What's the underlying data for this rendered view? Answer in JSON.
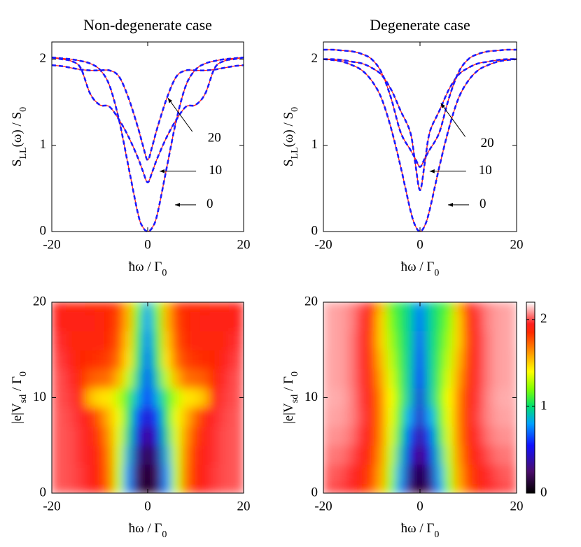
{
  "chart_data": [
    {
      "type": "line",
      "title": "Non-degenerate case",
      "xlabel": [
        {
          "text": "ħω / Γ"
        },
        {
          "text": "0",
          "sub": true
        }
      ],
      "ylabel": [
        {
          "text": "S"
        },
        {
          "text": "LL",
          "sub": true
        },
        {
          "text": "(ω) / S"
        },
        {
          "text": "0",
          "sub": true
        }
      ],
      "xlim": [
        -20,
        20
      ],
      "xticks": [
        -20,
        0,
        20
      ],
      "ylim": [
        0,
        2.2
      ],
      "yticks": [
        0,
        1,
        2
      ],
      "x": [
        -20,
        -18,
        -16,
        -14,
        -12,
        -10,
        -8,
        -6,
        -4,
        -2,
        -1,
        0,
        1,
        2,
        4,
        6,
        8,
        10,
        12,
        14,
        16,
        18,
        20
      ],
      "series": [
        {
          "color": "#ff2020",
          "dash_color": "#1a1aff",
          "values": [
            2.02,
            2.01,
            2.0,
            1.98,
            1.95,
            1.88,
            1.7,
            1.3,
            0.75,
            0.2,
            0.05,
            0,
            0.05,
            0.2,
            0.75,
            1.3,
            1.7,
            1.88,
            1.95,
            1.98,
            2.0,
            2.01,
            2.02
          ]
        },
        {
          "color": "#ff2020",
          "dash_color": "#1a1aff",
          "values": [
            2.02,
            2.0,
            1.98,
            1.9,
            1.6,
            1.47,
            1.45,
            1.3,
            1.1,
            0.85,
            0.7,
            0.57,
            0.7,
            0.85,
            1.1,
            1.3,
            1.45,
            1.47,
            1.6,
            1.9,
            1.98,
            2.0,
            2.02
          ]
        },
        {
          "color": "#ff2020",
          "dash_color": "#1a1aff",
          "values": [
            1.93,
            1.92,
            1.9,
            1.88,
            1.87,
            1.87,
            1.87,
            1.8,
            1.55,
            1.2,
            1.0,
            0.83,
            1.0,
            1.2,
            1.55,
            1.8,
            1.87,
            1.87,
            1.87,
            1.88,
            1.9,
            1.92,
            1.93
          ]
        }
      ],
      "annotations": [
        {
          "text": "20",
          "x": 4.2,
          "y": 1.55
        },
        {
          "text": "10",
          "x": 2.5,
          "y": 0.7
        },
        {
          "text": "0",
          "x": 5.7,
          "y": 0.31
        }
      ]
    },
    {
      "type": "line",
      "title": "Degenerate case",
      "xlabel": [
        {
          "text": "ħω / Γ"
        },
        {
          "text": "0",
          "sub": true
        }
      ],
      "ylabel": [
        {
          "text": "S"
        },
        {
          "text": "LL",
          "sub": true
        },
        {
          "text": "(ω) / S"
        },
        {
          "text": "0",
          "sub": true
        }
      ],
      "xlim": [
        -20,
        20
      ],
      "xticks": [
        -20,
        0,
        20
      ],
      "ylim": [
        0,
        2.2
      ],
      "yticks": [
        0,
        1,
        2
      ],
      "x": [
        -20,
        -18,
        -16,
        -14,
        -12,
        -10,
        -8,
        -6,
        -4,
        -2,
        -1,
        0,
        1,
        2,
        4,
        6,
        8,
        10,
        12,
        14,
        16,
        18,
        20
      ],
      "series": [
        {
          "color": "#ff2020",
          "dash_color": "#1a1aff",
          "values": [
            2.0,
            1.99,
            1.97,
            1.93,
            1.87,
            1.75,
            1.55,
            1.2,
            0.75,
            0.25,
            0.07,
            0,
            0.07,
            0.25,
            0.75,
            1.2,
            1.55,
            1.75,
            1.87,
            1.93,
            1.97,
            1.99,
            2.0
          ]
        },
        {
          "color": "#ff2020",
          "dash_color": "#1a1aff",
          "values": [
            2.0,
            2.0,
            1.99,
            1.97,
            1.95,
            1.9,
            1.82,
            1.65,
            1.4,
            1.15,
            0.8,
            0.48,
            0.8,
            1.15,
            1.4,
            1.65,
            1.82,
            1.9,
            1.95,
            1.97,
            1.99,
            2.0,
            2.0
          ]
        },
        {
          "color": "#ff2020",
          "dash_color": "#1a1aff",
          "values": [
            2.11,
            2.11,
            2.1,
            2.09,
            2.06,
            2.0,
            1.85,
            1.55,
            1.15,
            0.95,
            0.85,
            0.75,
            0.85,
            0.95,
            1.15,
            1.55,
            1.85,
            2.0,
            2.06,
            2.09,
            2.1,
            2.11,
            2.11
          ]
        }
      ],
      "annotations": [
        {
          "text": "20",
          "x": 4.3,
          "y": 1.49
        },
        {
          "text": "10",
          "x": 2,
          "y": 0.7
        },
        {
          "text": "0",
          "x": 5.8,
          "y": 0.31
        }
      ]
    },
    {
      "type": "heatmap",
      "xlabel": [
        {
          "text": "ħω / Γ"
        },
        {
          "text": "0",
          "sub": true
        }
      ],
      "ylabel": [
        {
          "text": "|e|V"
        },
        {
          "text": "sd",
          "sub": true
        },
        {
          "text": " / Γ"
        },
        {
          "text": "0",
          "sub": true
        }
      ],
      "xlim": [
        -20,
        20
      ],
      "xticks": [
        -20,
        0,
        20
      ],
      "ylim": [
        0,
        20
      ],
      "yticks": [
        0,
        10,
        20
      ],
      "colorscale": [
        [
          0,
          "#000000"
        ],
        [
          0.25,
          "#4b0c6b"
        ],
        [
          0.55,
          "#1010ff"
        ],
        [
          0.8,
          "#00a0ff"
        ],
        [
          1.0,
          "#00e070"
        ],
        [
          1.2,
          "#80ff00"
        ],
        [
          1.4,
          "#ffff00"
        ],
        [
          1.6,
          "#ffa000"
        ],
        [
          1.85,
          "#ff2a00"
        ],
        [
          1.95,
          "#ff2020"
        ],
        [
          2.2,
          "#ffffff"
        ]
      ],
      "x": [
        -20,
        -18,
        -16,
        -14,
        -12,
        -10,
        -8,
        -6,
        -4,
        -2,
        0,
        2,
        4,
        6,
        8,
        10,
        12,
        14,
        16,
        18,
        20
      ],
      "y": [
        0,
        2,
        4,
        6,
        8,
        10,
        12,
        14,
        16,
        18,
        20
      ],
      "z": [
        [
          2.02,
          2.01,
          2.0,
          1.98,
          1.95,
          1.88,
          1.7,
          1.3,
          0.75,
          0.2,
          0,
          0.2,
          0.75,
          1.3,
          1.7,
          1.88,
          1.95,
          1.98,
          2.0,
          2.01,
          2.02
        ],
        [
          2.02,
          2.01,
          2.0,
          1.98,
          1.94,
          1.86,
          1.68,
          1.3,
          0.78,
          0.25,
          0.05,
          0.25,
          0.78,
          1.3,
          1.68,
          1.86,
          1.94,
          1.98,
          2.0,
          2.01,
          2.02
        ],
        [
          2.02,
          2.01,
          2.0,
          1.97,
          1.93,
          1.84,
          1.66,
          1.32,
          0.85,
          0.35,
          0.15,
          0.35,
          0.85,
          1.32,
          1.66,
          1.84,
          1.93,
          1.97,
          2.0,
          2.01,
          2.02
        ],
        [
          2.02,
          2.01,
          2.0,
          1.97,
          1.92,
          1.8,
          1.62,
          1.35,
          0.95,
          0.5,
          0.3,
          0.5,
          0.95,
          1.35,
          1.62,
          1.8,
          1.92,
          1.97,
          2.0,
          2.01,
          2.02
        ],
        [
          2.02,
          2.01,
          1.99,
          1.96,
          1.9,
          1.72,
          1.55,
          1.38,
          1.05,
          0.65,
          0.45,
          0.65,
          1.05,
          1.38,
          1.55,
          1.72,
          1.9,
          1.96,
          1.99,
          2.01,
          2.02
        ],
        [
          2.02,
          2.0,
          1.98,
          1.9,
          1.55,
          1.47,
          1.45,
          1.3,
          1.1,
          0.85,
          0.57,
          0.85,
          1.1,
          1.3,
          1.45,
          1.47,
          1.55,
          1.9,
          1.98,
          2.0,
          2.02
        ],
        [
          2.01,
          2.0,
          1.96,
          1.85,
          1.75,
          1.72,
          1.7,
          1.55,
          1.3,
          0.95,
          0.63,
          0.95,
          1.3,
          1.55,
          1.7,
          1.72,
          1.75,
          1.85,
          1.96,
          2.0,
          2.01
        ],
        [
          2.0,
          1.98,
          1.93,
          1.87,
          1.85,
          1.83,
          1.8,
          1.7,
          1.45,
          1.05,
          0.68,
          1.05,
          1.45,
          1.7,
          1.8,
          1.83,
          1.85,
          1.87,
          1.93,
          1.98,
          2.0
        ],
        [
          1.98,
          1.96,
          1.9,
          1.9,
          1.9,
          1.88,
          1.85,
          1.75,
          1.5,
          1.1,
          0.73,
          1.1,
          1.5,
          1.75,
          1.85,
          1.88,
          1.9,
          1.9,
          1.9,
          1.96,
          1.98
        ],
        [
          1.96,
          1.92,
          1.92,
          1.92,
          1.92,
          1.9,
          1.87,
          1.78,
          1.55,
          1.15,
          0.78,
          1.15,
          1.55,
          1.78,
          1.87,
          1.9,
          1.92,
          1.92,
          1.92,
          1.92,
          1.96
        ],
        [
          1.93,
          1.92,
          1.9,
          1.88,
          1.87,
          1.87,
          1.87,
          1.8,
          1.55,
          1.2,
          0.83,
          1.2,
          1.55,
          1.8,
          1.87,
          1.87,
          1.87,
          1.88,
          1.9,
          1.92,
          1.93
        ]
      ]
    },
    {
      "type": "heatmap",
      "xlabel": [
        {
          "text": "ħω / Γ"
        },
        {
          "text": "0",
          "sub": true
        }
      ],
      "ylabel": [
        {
          "text": "|e|V"
        },
        {
          "text": "sd",
          "sub": true
        },
        {
          "text": " / Γ"
        },
        {
          "text": "0",
          "sub": true
        }
      ],
      "xlim": [
        -20,
        20
      ],
      "xticks": [
        -20,
        0,
        20
      ],
      "ylim": [
        0,
        20
      ],
      "yticks": [
        0,
        10,
        20
      ],
      "colorscale": [
        [
          0,
          "#000000"
        ],
        [
          0.25,
          "#4b0c6b"
        ],
        [
          0.55,
          "#1010ff"
        ],
        [
          0.8,
          "#00a0ff"
        ],
        [
          1.0,
          "#00e070"
        ],
        [
          1.2,
          "#80ff00"
        ],
        [
          1.4,
          "#ffff00"
        ],
        [
          1.6,
          "#ffa000"
        ],
        [
          1.85,
          "#ff2a00"
        ],
        [
          1.95,
          "#ff2020"
        ],
        [
          2.2,
          "#ffffff"
        ]
      ],
      "colorbar": true,
      "zlim": [
        0,
        2.2
      ],
      "zticks": [
        0,
        1,
        2
      ],
      "x": [
        -20,
        -18,
        -16,
        -14,
        -12,
        -10,
        -8,
        -6,
        -4,
        -2,
        0,
        2,
        4,
        6,
        8,
        10,
        12,
        14,
        16,
        18,
        20
      ],
      "y": [
        0,
        2,
        4,
        6,
        8,
        10,
        12,
        14,
        16,
        18,
        20
      ],
      "z": [
        [
          2.0,
          1.99,
          1.97,
          1.93,
          1.87,
          1.75,
          1.55,
          1.2,
          0.75,
          0.25,
          0,
          0.25,
          0.75,
          1.2,
          1.55,
          1.75,
          1.87,
          1.93,
          1.97,
          1.99,
          2.0
        ],
        [
          2.02,
          2.02,
          2.0,
          1.96,
          1.9,
          1.78,
          1.58,
          1.25,
          0.82,
          0.35,
          0.1,
          0.35,
          0.82,
          1.25,
          1.58,
          1.78,
          1.9,
          1.96,
          2.0,
          2.02,
          2.02
        ],
        [
          2.05,
          2.05,
          2.04,
          2.0,
          1.94,
          1.82,
          1.62,
          1.3,
          0.9,
          0.5,
          0.25,
          0.5,
          0.9,
          1.3,
          1.62,
          1.82,
          1.94,
          2.0,
          2.04,
          2.05,
          2.05
        ],
        [
          2.07,
          2.08,
          2.07,
          2.04,
          1.97,
          1.85,
          1.65,
          1.35,
          1.0,
          0.65,
          0.35,
          0.65,
          1.0,
          1.35,
          1.65,
          1.85,
          1.97,
          2.04,
          2.07,
          2.08,
          2.07
        ],
        [
          2.09,
          2.1,
          2.09,
          2.06,
          1.99,
          1.86,
          1.66,
          1.38,
          1.1,
          0.8,
          0.42,
          0.8,
          1.1,
          1.38,
          1.66,
          1.86,
          1.99,
          2.06,
          2.09,
          2.1,
          2.09
        ],
        [
          2.1,
          2.11,
          2.1,
          2.06,
          1.98,
          1.85,
          1.65,
          1.4,
          1.15,
          0.9,
          0.48,
          0.9,
          1.15,
          1.4,
          1.65,
          1.85,
          1.98,
          2.06,
          2.1,
          2.11,
          2.1
        ],
        [
          2.1,
          2.1,
          2.09,
          2.05,
          1.97,
          1.82,
          1.6,
          1.35,
          1.12,
          0.92,
          0.55,
          0.92,
          1.12,
          1.35,
          1.6,
          1.82,
          1.97,
          2.05,
          2.09,
          2.1,
          2.1
        ],
        [
          2.1,
          2.1,
          2.09,
          2.05,
          1.96,
          1.8,
          1.55,
          1.3,
          1.1,
          0.93,
          0.62,
          0.93,
          1.1,
          1.3,
          1.55,
          1.8,
          1.96,
          2.05,
          2.09,
          2.1,
          2.1
        ],
        [
          2.11,
          2.1,
          2.09,
          2.05,
          1.96,
          1.78,
          1.5,
          1.25,
          1.08,
          0.94,
          0.67,
          0.94,
          1.08,
          1.25,
          1.5,
          1.78,
          1.96,
          2.05,
          2.09,
          2.1,
          2.11
        ],
        [
          2.11,
          2.1,
          2.09,
          2.06,
          1.97,
          1.8,
          1.5,
          1.2,
          1.06,
          0.94,
          0.71,
          0.94,
          1.06,
          1.2,
          1.5,
          1.8,
          1.97,
          2.06,
          2.09,
          2.1,
          2.11
        ],
        [
          2.11,
          2.1,
          2.09,
          2.06,
          2.0,
          1.85,
          1.55,
          1.15,
          1.05,
          0.95,
          0.75,
          0.95,
          1.05,
          1.15,
          1.55,
          1.85,
          2.0,
          2.06,
          2.09,
          2.1,
          2.11
        ]
      ]
    }
  ]
}
